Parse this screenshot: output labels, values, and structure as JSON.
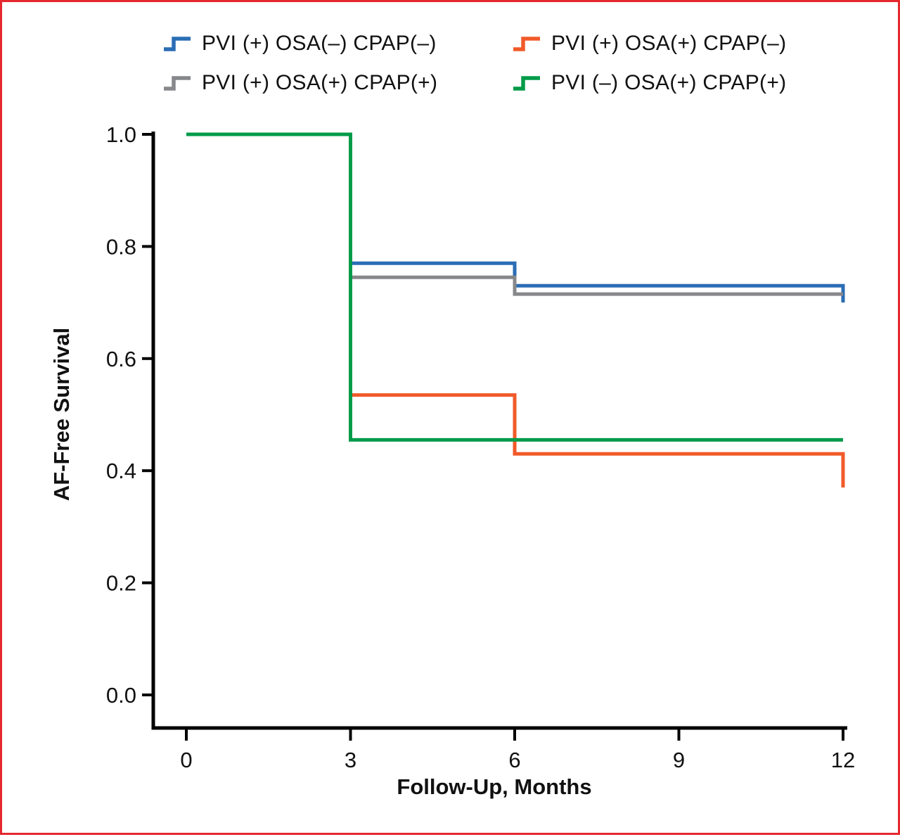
{
  "figure": {
    "border_color": "#e5282e",
    "background_color": "#ffffff",
    "axis_color": "#000000",
    "tick_label_color": "#111111"
  },
  "chart_data": {
    "type": "line",
    "subtype": "kaplan-meier-step",
    "title": "",
    "xlabel": "Follow-Up, Months",
    "ylabel": "AF-Free Survival",
    "xlim": [
      0,
      12
    ],
    "ylim": [
      0.0,
      1.0
    ],
    "x_ticks": [
      0,
      3,
      6,
      9,
      12
    ],
    "y_ticks": [
      1.0,
      0.8,
      0.6,
      0.4,
      0.2,
      0.0
    ],
    "grid": false,
    "legend_position": "top",
    "series": [
      {
        "name": "PVI (+) OSA(–) CPAP(–)",
        "color": "#2a6db5",
        "points": [
          [
            0,
            1.0
          ],
          [
            3,
            1.0
          ],
          [
            3,
            0.77
          ],
          [
            6,
            0.77
          ],
          [
            6,
            0.73
          ],
          [
            12,
            0.73
          ],
          [
            12,
            0.7
          ]
        ]
      },
      {
        "name": "PVI (+) OSA(+) CPAP(–)",
        "color": "#f15a29",
        "points": [
          [
            0,
            1.0
          ],
          [
            3,
            1.0
          ],
          [
            3,
            0.535
          ],
          [
            6,
            0.535
          ],
          [
            6,
            0.43
          ],
          [
            12,
            0.43
          ],
          [
            12,
            0.37
          ]
        ]
      },
      {
        "name": "PVI (+) OSA(+) CPAP(+)",
        "color": "#87888b",
        "points": [
          [
            0,
            1.0
          ],
          [
            3,
            1.0
          ],
          [
            3,
            0.745
          ],
          [
            6,
            0.745
          ],
          [
            6,
            0.715
          ],
          [
            12,
            0.715
          ]
        ]
      },
      {
        "name": "PVI (–) OSA(+) CPAP(+)",
        "color": "#009b49",
        "points": [
          [
            0,
            1.0
          ],
          [
            3,
            1.0
          ],
          [
            3,
            0.455
          ],
          [
            12,
            0.455
          ]
        ]
      }
    ]
  }
}
